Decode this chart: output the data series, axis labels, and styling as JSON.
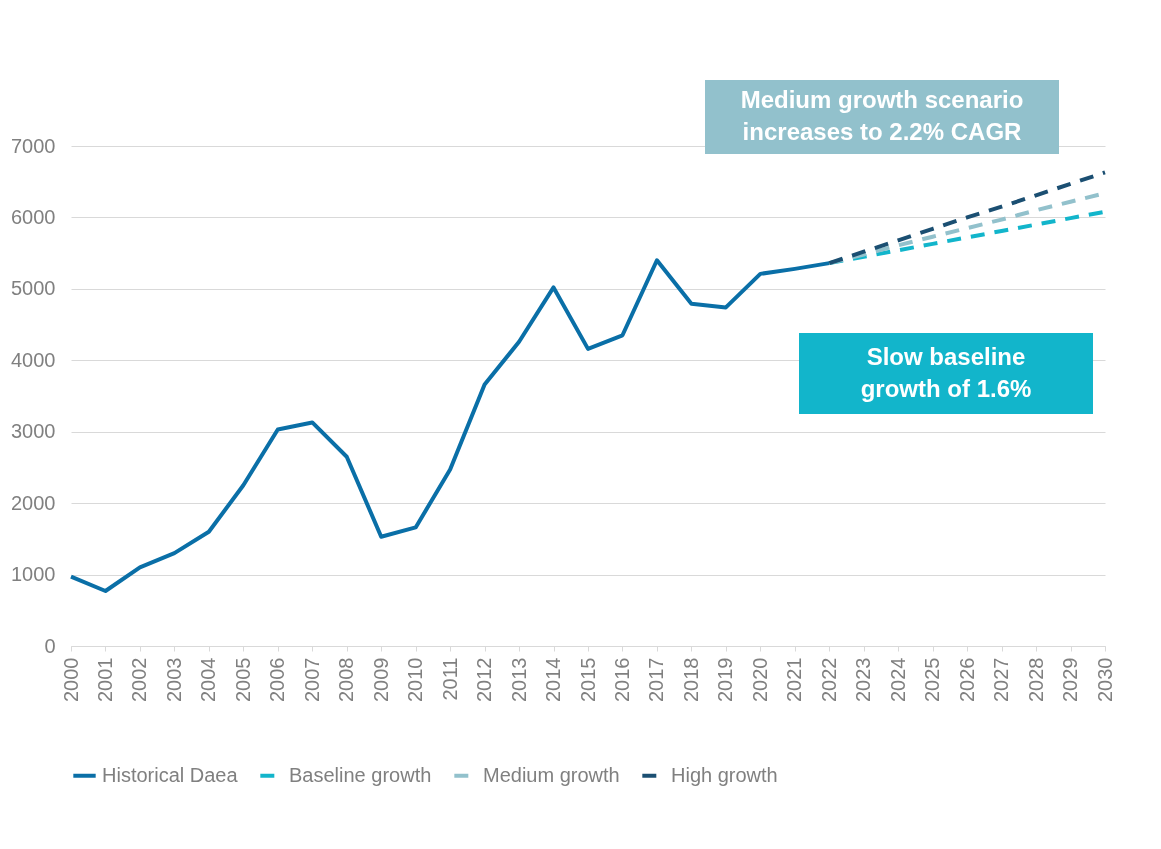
{
  "chart_data": {
    "type": "line",
    "x": [
      2000,
      2001,
      2002,
      2003,
      2004,
      2005,
      2006,
      2007,
      2008,
      2009,
      2010,
      2011,
      2012,
      2013,
      2014,
      2015,
      2016,
      2017,
      2018,
      2019,
      2020,
      2021,
      2022,
      2023,
      2024,
      2025,
      2026,
      2027,
      2028,
      2029,
      2030
    ],
    "series": [
      {
        "name": "Historical Daea",
        "color": "#0a6fa7",
        "line_style": "solid",
        "values": [
          970,
          770,
          1100,
          1300,
          1600,
          2250,
          3030,
          3130,
          2650,
          1530,
          1660,
          2470,
          3660,
          4260,
          5020,
          4160,
          4350,
          5400,
          4790,
          4740,
          5210,
          5280,
          5360,
          null,
          null,
          null,
          null,
          null,
          null,
          null,
          null
        ]
      },
      {
        "name": "Baseline growth",
        "color": "#12b5cb",
        "line_style": "dashed",
        "values": [
          null,
          null,
          null,
          null,
          null,
          null,
          null,
          null,
          null,
          null,
          null,
          null,
          null,
          null,
          null,
          null,
          null,
          null,
          null,
          null,
          null,
          null,
          5360,
          5450,
          5540,
          5630,
          5720,
          5810,
          5900,
          5990,
          6080
        ]
      },
      {
        "name": "Medium growth",
        "color": "#92c1cc",
        "line_style": "dashed",
        "values": [
          null,
          null,
          null,
          null,
          null,
          null,
          null,
          null,
          null,
          null,
          null,
          null,
          null,
          null,
          null,
          null,
          null,
          null,
          null,
          null,
          null,
          null,
          5360,
          5480,
          5610,
          5730,
          5850,
          5970,
          6100,
          6220,
          6340
        ]
      },
      {
        "name": "High growth",
        "color": "#1b4f72",
        "line_style": "dashed",
        "values": [
          null,
          null,
          null,
          null,
          null,
          null,
          null,
          null,
          null,
          null,
          null,
          null,
          null,
          null,
          null,
          null,
          null,
          null,
          null,
          null,
          null,
          null,
          5360,
          5520,
          5680,
          5840,
          6000,
          6150,
          6310,
          6470,
          6630
        ]
      }
    ],
    "xlim": [
      2000,
      2030
    ],
    "xticks": [
      2000,
      2001,
      2002,
      2003,
      2004,
      2005,
      2006,
      2007,
      2008,
      2009,
      2010,
      2011,
      2012,
      2013,
      2014,
      2015,
      2016,
      2017,
      2018,
      2019,
      2020,
      2021,
      2022,
      2023,
      2024,
      2025,
      2026,
      2027,
      2028,
      2029,
      2030
    ],
    "ylim": [
      0,
      7000
    ],
    "yticks": [
      0,
      1000,
      2000,
      3000,
      4000,
      5000,
      6000,
      7000
    ],
    "grid": "y",
    "legend": "bottom",
    "annotations": [
      "Medium growth scenario\nincreases to 2.2% CAGR",
      "Slow baseline\ngrowth of 1.6%"
    ]
  }
}
